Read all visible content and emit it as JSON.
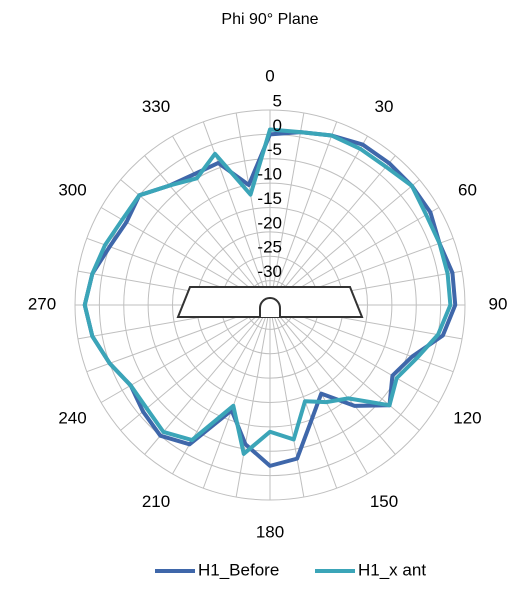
{
  "chart_data": {
    "type": "radar",
    "title": "Phi 90° Plane",
    "x": [
      0,
      10,
      20,
      30,
      40,
      50,
      60,
      70,
      80,
      90,
      100,
      110,
      120,
      130,
      140,
      150,
      160,
      170,
      180,
      190,
      200,
      210,
      220,
      230,
      240,
      250,
      260,
      270,
      280,
      290,
      300,
      310,
      320,
      330,
      340,
      350
    ],
    "xticks": [
      0,
      30,
      60,
      90,
      120,
      150,
      180,
      210,
      240,
      270,
      300,
      330
    ],
    "ylim": [
      -35,
      5
    ],
    "yticks": [
      -30,
      -25,
      -20,
      -15,
      -10,
      -5,
      0,
      5
    ],
    "grid": true,
    "legend": "bottom",
    "series": [
      {
        "name": "H1_Before",
        "color": "#3f67aa",
        "values": [
          0,
          1,
          2,
          3,
          3,
          3,
          3,
          2,
          3,
          3,
          1,
          -4,
          -6,
          -3,
          -8,
          -14,
          -10,
          -3,
          -2,
          -6,
          -12,
          -2,
          0,
          -1,
          -2,
          0,
          2,
          3,
          2,
          0,
          -1,
          0,
          -3,
          -4,
          -4,
          -10
        ]
      },
      {
        "name": "H1_x ant",
        "color": "#3ba5b8",
        "values": [
          1,
          1,
          2,
          2,
          2,
          3,
          2,
          2,
          2,
          2,
          0,
          -3,
          -5,
          -3,
          -10,
          -12,
          -14,
          -7,
          -9,
          -4,
          -13,
          -3,
          -1,
          -2,
          -2,
          0,
          2,
          3,
          2,
          1,
          0,
          0,
          -3,
          -5,
          -2,
          -12
        ]
      }
    ]
  }
}
